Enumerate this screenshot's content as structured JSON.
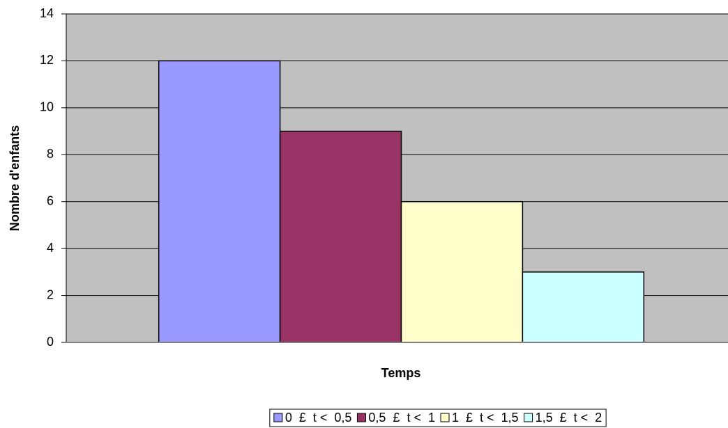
{
  "chart_data": {
    "type": "bar",
    "ylabel": "Nombre d'enfants",
    "xlabel": "Temps",
    "categories": [
      null
    ],
    "series": [
      {
        "name": "0  £  t <  0,5",
        "color": "#9999ff",
        "values": [
          12
        ]
      },
      {
        "name": "0,5  £  t <  1",
        "color": "#993366",
        "values": [
          9
        ]
      },
      {
        "name": "1  £  t <  1,5",
        "color": "#ffffcc",
        "values": [
          6
        ]
      },
      {
        "name": "1,5  £  t <  2",
        "color": "#ccffff",
        "values": [
          3
        ]
      }
    ],
    "ylim": [
      0,
      14
    ],
    "yticks": [
      0,
      2,
      4,
      6,
      8,
      10,
      12,
      14
    ],
    "grid": true,
    "legend": "bottom"
  }
}
